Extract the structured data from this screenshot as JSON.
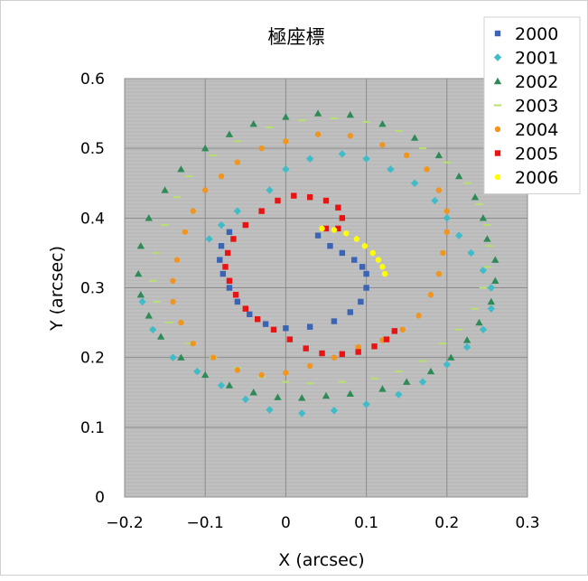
{
  "chart_data": {
    "type": "scatter",
    "title": "極座標",
    "xlabel": "X (arcsec)",
    "ylabel": "Y (arcsec)",
    "xlim": [
      -0.2,
      0.3
    ],
    "ylim": [
      0,
      0.6
    ],
    "xticks": [
      "−0.2",
      "−0.1",
      "0",
      "0.1",
      "0.2",
      "0.3"
    ],
    "yticks": [
      "0",
      "0.1",
      "0.2",
      "0.3",
      "0.4",
      "0.5",
      "0.6"
    ],
    "grid": true,
    "legend_position": "top-right",
    "plot_background": "#c0c0c0",
    "series": [
      {
        "name": "2000",
        "color": "#3b64b4",
        "marker": "square",
        "points": [
          [
            0.04,
            0.375
          ],
          [
            0.055,
            0.36
          ],
          [
            0.07,
            0.35
          ],
          [
            0.085,
            0.34
          ],
          [
            0.095,
            0.33
          ],
          [
            0.1,
            0.32
          ],
          [
            0.1,
            0.3
          ],
          [
            0.093,
            0.28
          ],
          [
            0.08,
            0.265
          ],
          [
            0.06,
            0.252
          ],
          [
            0.03,
            0.244
          ],
          [
            0.0,
            0.242
          ],
          [
            -0.025,
            0.248
          ],
          [
            -0.045,
            0.262
          ],
          [
            -0.06,
            0.28
          ],
          [
            -0.07,
            0.3
          ],
          [
            -0.078,
            0.32
          ],
          [
            -0.082,
            0.34
          ],
          [
            -0.08,
            0.36
          ],
          [
            -0.07,
            0.38
          ]
        ]
      },
      {
        "name": "2001",
        "color": "#40bcc8",
        "marker": "diamond",
        "points": [
          [
            -0.02,
            0.44
          ],
          [
            0.0,
            0.47
          ],
          [
            0.03,
            0.485
          ],
          [
            0.07,
            0.492
          ],
          [
            0.1,
            0.485
          ],
          [
            0.13,
            0.47
          ],
          [
            0.16,
            0.45
          ],
          [
            0.185,
            0.425
          ],
          [
            0.2,
            0.4
          ],
          [
            0.215,
            0.375
          ],
          [
            0.23,
            0.35
          ],
          [
            0.245,
            0.325
          ],
          [
            0.255,
            0.3
          ],
          [
            0.255,
            0.27
          ],
          [
            0.245,
            0.24
          ],
          [
            0.225,
            0.215
          ],
          [
            0.2,
            0.19
          ],
          [
            0.17,
            0.165
          ],
          [
            0.14,
            0.147
          ],
          [
            0.1,
            0.133
          ],
          [
            0.06,
            0.124
          ],
          [
            0.02,
            0.12
          ],
          [
            -0.02,
            0.125
          ],
          [
            -0.05,
            0.14
          ],
          [
            -0.08,
            0.16
          ],
          [
            -0.11,
            0.18
          ],
          [
            -0.14,
            0.2
          ],
          [
            -0.165,
            0.24
          ],
          [
            -0.178,
            0.28
          ],
          [
            -0.06,
            0.41
          ],
          [
            -0.08,
            0.39
          ],
          [
            -0.095,
            0.37
          ]
        ]
      },
      {
        "name": "2002",
        "color": "#2e8b57",
        "marker": "triangle",
        "points": [
          [
            -0.15,
            0.44
          ],
          [
            -0.13,
            0.47
          ],
          [
            -0.1,
            0.5
          ],
          [
            -0.07,
            0.52
          ],
          [
            -0.04,
            0.535
          ],
          [
            0.0,
            0.545
          ],
          [
            0.04,
            0.55
          ],
          [
            0.08,
            0.548
          ],
          [
            0.12,
            0.535
          ],
          [
            0.16,
            0.515
          ],
          [
            0.19,
            0.49
          ],
          [
            0.215,
            0.46
          ],
          [
            0.235,
            0.43
          ],
          [
            0.245,
            0.4
          ],
          [
            0.25,
            0.37
          ],
          [
            0.26,
            0.34
          ],
          [
            0.26,
            0.31
          ],
          [
            0.255,
            0.28
          ],
          [
            0.24,
            0.25
          ],
          [
            0.225,
            0.225
          ],
          [
            0.205,
            0.2
          ],
          [
            0.18,
            0.18
          ],
          [
            0.15,
            0.165
          ],
          [
            0.12,
            0.155
          ],
          [
            0.08,
            0.148
          ],
          [
            0.05,
            0.145
          ],
          [
            0.02,
            0.142
          ],
          [
            -0.01,
            0.143
          ],
          [
            -0.04,
            0.15
          ],
          [
            -0.07,
            0.16
          ],
          [
            -0.1,
            0.175
          ],
          [
            -0.13,
            0.2
          ],
          [
            -0.155,
            0.23
          ],
          [
            -0.17,
            0.26
          ],
          [
            -0.18,
            0.29
          ],
          [
            -0.183,
            0.32
          ],
          [
            -0.18,
            0.36
          ],
          [
            -0.17,
            0.4
          ]
        ]
      },
      {
        "name": "2003",
        "color": "#b8e070",
        "marker": "dash",
        "points": [
          [
            -0.12,
            0.46
          ],
          [
            -0.09,
            0.49
          ],
          [
            -0.06,
            0.51
          ],
          [
            -0.02,
            0.53
          ],
          [
            0.02,
            0.54
          ],
          [
            0.06,
            0.543
          ],
          [
            0.1,
            0.538
          ],
          [
            0.14,
            0.525
          ],
          [
            0.17,
            0.5
          ],
          [
            0.2,
            0.48
          ],
          [
            0.225,
            0.45
          ],
          [
            0.24,
            0.42
          ],
          [
            0.25,
            0.39
          ],
          [
            0.253,
            0.36
          ],
          [
            0.25,
            0.33
          ],
          [
            0.245,
            0.3
          ],
          [
            0.235,
            0.27
          ],
          [
            0.215,
            0.24
          ],
          [
            0.195,
            0.22
          ],
          [
            0.17,
            0.195
          ],
          [
            0.14,
            0.18
          ],
          [
            0.11,
            0.17
          ],
          [
            0.07,
            0.165
          ],
          [
            0.03,
            0.163
          ],
          [
            0.0,
            0.165
          ],
          [
            -0.03,
            0.172
          ],
          [
            -0.06,
            0.185
          ],
          [
            -0.09,
            0.2
          ],
          [
            -0.12,
            0.22
          ],
          [
            -0.145,
            0.25
          ],
          [
            -0.16,
            0.28
          ],
          [
            -0.165,
            0.31
          ],
          [
            -0.16,
            0.35
          ],
          [
            -0.15,
            0.39
          ],
          [
            -0.135,
            0.43
          ]
        ]
      },
      {
        "name": "2004",
        "color": "#f0951e",
        "marker": "circle",
        "points": [
          [
            -0.1,
            0.44
          ],
          [
            -0.08,
            0.46
          ],
          [
            -0.06,
            0.48
          ],
          [
            -0.03,
            0.5
          ],
          [
            0.0,
            0.51
          ],
          [
            0.04,
            0.52
          ],
          [
            0.08,
            0.518
          ],
          [
            0.12,
            0.505
          ],
          [
            0.15,
            0.49
          ],
          [
            0.175,
            0.47
          ],
          [
            0.19,
            0.44
          ],
          [
            0.2,
            0.41
          ],
          [
            0.2,
            0.38
          ],
          [
            0.195,
            0.35
          ],
          [
            0.19,
            0.32
          ],
          [
            0.18,
            0.29
          ],
          [
            0.165,
            0.26
          ],
          [
            0.145,
            0.24
          ],
          [
            0.12,
            0.225
          ],
          [
            0.09,
            0.215
          ],
          [
            0.06,
            0.2
          ],
          [
            0.03,
            0.188
          ],
          [
            0.0,
            0.178
          ],
          [
            -0.03,
            0.175
          ],
          [
            -0.06,
            0.182
          ],
          [
            -0.09,
            0.2
          ],
          [
            -0.115,
            0.22
          ],
          [
            -0.13,
            0.25
          ],
          [
            -0.14,
            0.28
          ],
          [
            -0.14,
            0.31
          ],
          [
            -0.135,
            0.34
          ],
          [
            -0.125,
            0.38
          ],
          [
            -0.115,
            0.41
          ]
        ]
      },
      {
        "name": "2005",
        "color": "#e81414",
        "marker": "square",
        "points": [
          [
            0.05,
            0.385
          ],
          [
            0.065,
            0.385
          ],
          [
            0.07,
            0.4
          ],
          [
            0.065,
            0.415
          ],
          [
            0.05,
            0.425
          ],
          [
            0.03,
            0.43
          ],
          [
            0.01,
            0.432
          ],
          [
            -0.01,
            0.425
          ],
          [
            -0.03,
            0.41
          ],
          [
            -0.05,
            0.39
          ],
          [
            -0.065,
            0.37
          ],
          [
            -0.072,
            0.35
          ],
          [
            -0.075,
            0.33
          ],
          [
            -0.07,
            0.31
          ],
          [
            -0.062,
            0.29
          ],
          [
            -0.05,
            0.27
          ],
          [
            -0.035,
            0.255
          ],
          [
            -0.015,
            0.24
          ],
          [
            0.005,
            0.226
          ],
          [
            0.025,
            0.213
          ],
          [
            0.045,
            0.206
          ],
          [
            0.07,
            0.205
          ],
          [
            0.09,
            0.208
          ],
          [
            0.11,
            0.216
          ],
          [
            0.125,
            0.226
          ],
          [
            0.135,
            0.238
          ]
        ]
      },
      {
        "name": "2006",
        "color": "#ffff00",
        "marker": "circle",
        "points": [
          [
            0.045,
            0.385
          ],
          [
            0.06,
            0.383
          ],
          [
            0.075,
            0.378
          ],
          [
            0.088,
            0.37
          ],
          [
            0.098,
            0.36
          ],
          [
            0.108,
            0.35
          ],
          [
            0.115,
            0.34
          ],
          [
            0.12,
            0.33
          ],
          [
            0.123,
            0.32
          ]
        ]
      }
    ]
  }
}
